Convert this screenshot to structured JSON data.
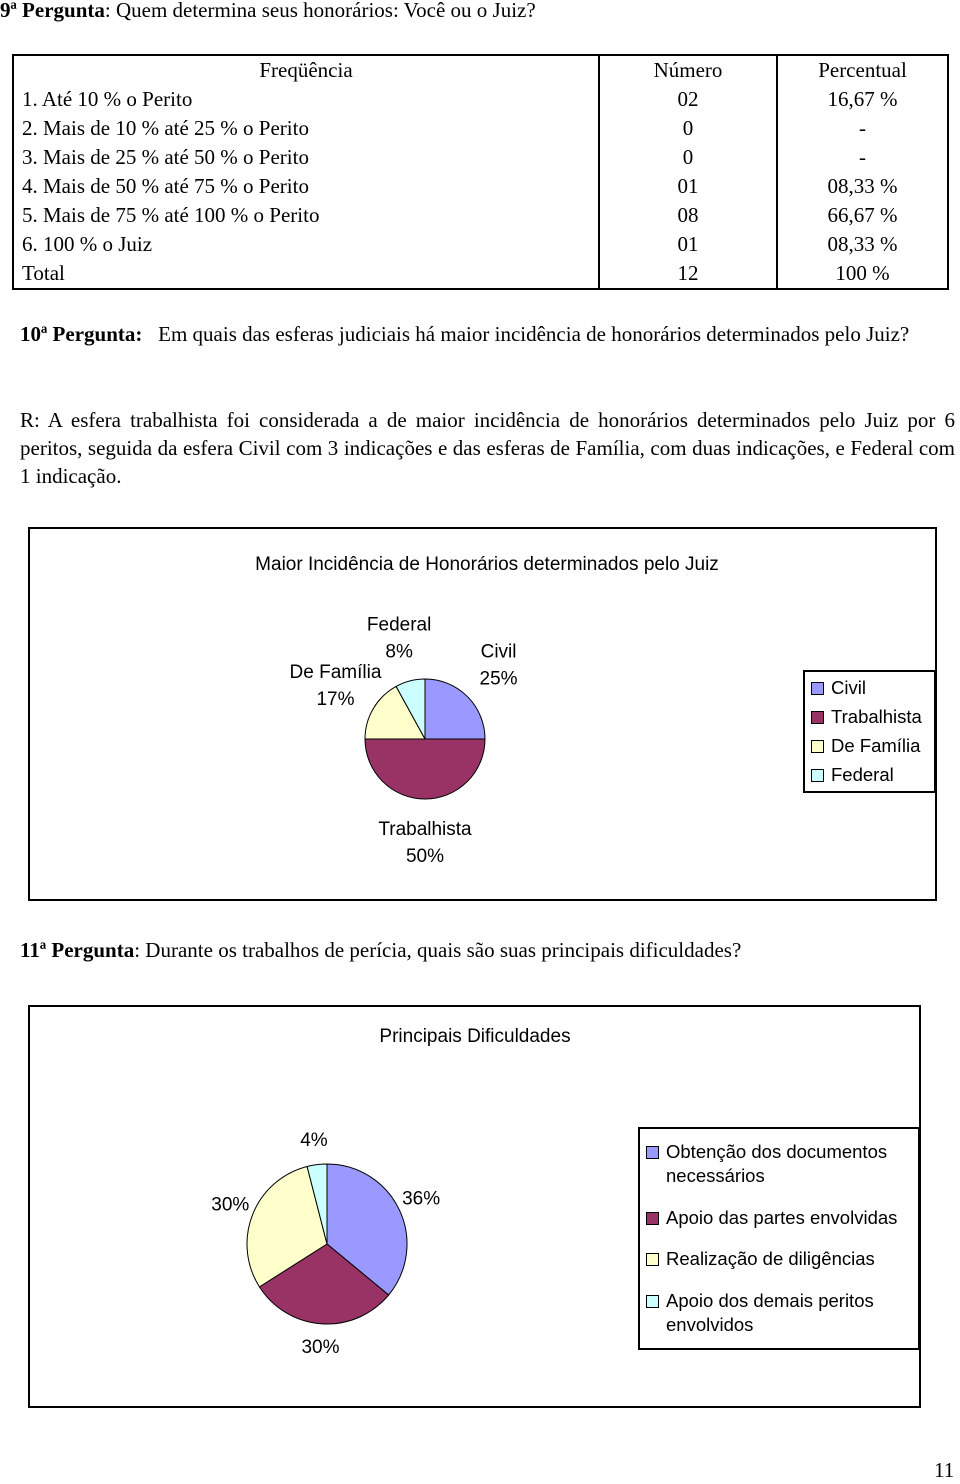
{
  "q9": {
    "label": "9ª Pergunta",
    "text": ": Quem determina seus honorários: Você ou o Juiz?"
  },
  "table": {
    "header": [
      "Freqüência",
      "Número",
      "Percentual"
    ],
    "rows": [
      [
        "1. Até 10 % o Perito",
        "02",
        "16,67 %"
      ],
      [
        "2. Mais de 10 % até 25 % o Perito",
        "0",
        "-"
      ],
      [
        "3. Mais de 25 % até 50 % o Perito",
        "0",
        "-"
      ],
      [
        "4. Mais de 50 % até 75 % o Perito",
        "01",
        "08,33 %"
      ],
      [
        "5. Mais de 75 % até 100 % o Perito",
        "08",
        "66,67 %"
      ],
      [
        "6. 100 % o Juiz",
        "01",
        "08,33 %"
      ],
      [
        "Total",
        "12",
        "100 %"
      ]
    ]
  },
  "q10": {
    "label": "10ª Pergunta:",
    "text": "Em quais das esferas judiciais há maior incidência de honorários determinados pelo Juiz?"
  },
  "answer10": "R: A esfera trabalhista foi considerada a de maior incidência de honorários determinados pelo Juiz por 6 peritos, seguida da esfera Civil com 3 indicações e das esferas de Família, com duas indicações, e Federal com 1 indicação.",
  "q11": {
    "label": "11ª Pergunta",
    "text": ":  Durante os trabalhos de perícia, quais são suas principais dificuldades?"
  },
  "charts": [
    {
      "type": "pie",
      "title": "Maior Incidência de Honorários determinados pelo Juiz",
      "categories": [
        "Civil",
        "Trabalhista",
        "De Família",
        "Federal"
      ],
      "values": [
        25,
        50,
        17,
        8
      ],
      "value_labels": [
        "25%",
        "50%",
        "17%",
        "8%"
      ],
      "colors": [
        "#9999ff",
        "#993366",
        "#ffffcc",
        "#ccffff"
      ],
      "slice_labels": "category_and_value",
      "legend": "right"
    },
    {
      "type": "pie",
      "title": "Principais Dificuldades",
      "categories": [
        "Obtenção dos documentos necessários",
        "Apoio das partes envolvidas",
        "Realização de diligências",
        "Apoio dos demais peritos envolvidos"
      ],
      "values": [
        36,
        30,
        30,
        4
      ],
      "value_labels": [
        "36%",
        "30%",
        "30%",
        "4%"
      ],
      "colors": [
        "#9999ff",
        "#993366",
        "#ffffcc",
        "#ccffff"
      ],
      "slice_labels": "value",
      "legend": "right"
    }
  ],
  "page_number": "11"
}
